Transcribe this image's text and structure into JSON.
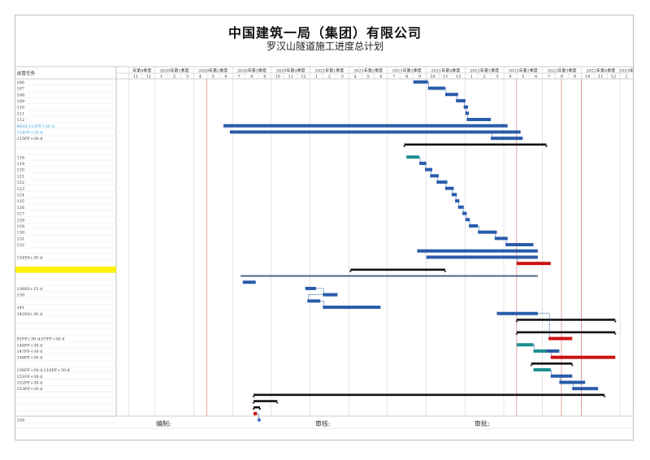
{
  "title": "中国建筑一局（集团）有限公司",
  "subtitle": "罗汉山隧道施工进度总计划",
  "task_column_header": "前置任务",
  "footer": {
    "compiled": "编制:",
    "reviewed": "审核:",
    "approved": "审批:"
  },
  "colors": {
    "bar": "#2a5caa",
    "summary": "#111111",
    "teal": "#1a8f8f",
    "critical": "#cc1111",
    "highlight": "#fff200",
    "link": "#2a5caa",
    "pred_highlight_text": "#3399dd"
  },
  "chart_data": {
    "type": "gantt",
    "timescale_start": "2019-10",
    "timescale_end": "2023-01",
    "quarters": [
      {
        "label": "年第4季度",
        "start": "2019-11",
        "months": [
          "11",
          "12"
        ]
      },
      {
        "label": "2020年第1季度",
        "start": "2020-01",
        "months": [
          "1",
          "2",
          "3"
        ]
      },
      {
        "label": "2020年第2季度",
        "start": "2020-04",
        "months": [
          "4",
          "5",
          "6"
        ]
      },
      {
        "label": "2020年第3季度",
        "start": "2020-07",
        "months": [
          "7",
          "8",
          "9"
        ]
      },
      {
        "label": "2020年第4季度",
        "start": "2020-10",
        "months": [
          "10",
          "11",
          "12"
        ]
      },
      {
        "label": "2021年第1季度",
        "start": "2021-01",
        "months": [
          "1",
          "2",
          "3"
        ]
      },
      {
        "label": "2021年第2季度",
        "start": "2021-04",
        "months": [
          "4",
          "5",
          "6"
        ]
      },
      {
        "label": "2021年第3季度",
        "start": "2021-07",
        "months": [
          "7",
          "8",
          "9"
        ]
      },
      {
        "label": "2021年第4季度",
        "start": "2021-10",
        "months": [
          "10",
          "11",
          "12"
        ]
      },
      {
        "label": "2022年第1季度",
        "start": "2022-01",
        "months": [
          "1",
          "2",
          "3"
        ]
      },
      {
        "label": "2022年第2季度",
        "start": "2022-04",
        "months": [
          "4",
          "5",
          "6"
        ]
      },
      {
        "label": "2022年第3季度",
        "start": "2022-07",
        "months": [
          "7",
          "8",
          "9"
        ]
      },
      {
        "label": "2022年第4季度",
        "start": "2022-10",
        "months": [
          "10",
          "11",
          "12"
        ]
      },
      {
        "label": "2023年",
        "start": "2023-01",
        "months": [
          "1"
        ]
      }
    ],
    "rows": [
      {
        "pred": "106",
        "bars": [
          {
            "start": "2021-09-01",
            "end": "2021-10-05",
            "kind": "bar"
          }
        ]
      },
      {
        "pred": "107",
        "bars": [
          {
            "start": "2021-10-05",
            "end": "2021-11-15",
            "kind": "bar"
          }
        ]
      },
      {
        "pred": "108",
        "bars": [
          {
            "start": "2021-11-15",
            "end": "2021-12-15",
            "kind": "bar"
          }
        ]
      },
      {
        "pred": "109",
        "bars": [
          {
            "start": "2021-12-10",
            "end": "2022-01-02",
            "kind": "bar"
          }
        ]
      },
      {
        "pred": "110",
        "bars": [
          {
            "start": "2021-12-28",
            "end": "2022-01-08",
            "kind": "bar"
          }
        ]
      },
      {
        "pred": "111",
        "bars": [
          {
            "start": "2022-01-02",
            "end": "2022-01-10",
            "kind": "bar"
          }
        ]
      },
      {
        "pred": "112",
        "bars": [
          {
            "start": "2022-01-05",
            "end": "2022-03-01",
            "kind": "bar"
          }
        ]
      },
      {
        "pred": "96SS,113FF+20 d",
        "pred_highlight": true,
        "bars": [
          {
            "start": "2020-06-10",
            "end": "2022-04-10",
            "kind": "bar"
          }
        ]
      },
      {
        "pred": "114FF+25 d",
        "pred_highlight": true,
        "bars": [
          {
            "start": "2020-06-25",
            "end": "2022-05-10",
            "kind": "bar"
          }
        ]
      },
      {
        "pred": "115FF+30 d",
        "bars": [
          {
            "start": "2022-03-01",
            "end": "2022-05-15",
            "kind": "bar"
          }
        ]
      },
      {
        "pred": "",
        "bars": [
          {
            "start": "2021-08-10",
            "end": "2022-07-10",
            "kind": "summary"
          }
        ]
      },
      {
        "pred": "",
        "bars": []
      },
      {
        "pred": "118",
        "bars": [
          {
            "start": "2021-08-15",
            "end": "2021-09-15",
            "kind": "teal"
          }
        ]
      },
      {
        "pred": "119",
        "bars": [
          {
            "start": "2021-09-15",
            "end": "2021-10-01",
            "kind": "bar"
          }
        ]
      },
      {
        "pred": "120",
        "bars": [
          {
            "start": "2021-09-28",
            "end": "2021-10-15",
            "kind": "bar"
          }
        ]
      },
      {
        "pred": "121",
        "bars": [
          {
            "start": "2021-10-10",
            "end": "2021-10-30",
            "kind": "bar"
          }
        ]
      },
      {
        "pred": "122",
        "bars": [
          {
            "start": "2021-10-25",
            "end": "2021-11-20",
            "kind": "bar"
          }
        ]
      },
      {
        "pred": "123",
        "bars": [
          {
            "start": "2021-11-15",
            "end": "2021-12-05",
            "kind": "bar"
          }
        ]
      },
      {
        "pred": "124",
        "bars": [
          {
            "start": "2021-11-30",
            "end": "2021-12-12",
            "kind": "bar"
          }
        ]
      },
      {
        "pred": "125",
        "bars": [
          {
            "start": "2021-12-08",
            "end": "2021-12-18",
            "kind": "bar"
          }
        ]
      },
      {
        "pred": "126",
        "bars": [
          {
            "start": "2021-12-15",
            "end": "2021-12-28",
            "kind": "bar"
          }
        ]
      },
      {
        "pred": "127",
        "bars": [
          {
            "start": "2021-12-25",
            "end": "2022-01-05",
            "kind": "bar"
          }
        ]
      },
      {
        "pred": "128",
        "bars": [
          {
            "start": "2022-01-02",
            "end": "2022-01-12",
            "kind": "bar"
          }
        ]
      },
      {
        "pred": "129",
        "bars": [
          {
            "start": "2022-01-10",
            "end": "2022-02-01",
            "kind": "bar"
          }
        ]
      },
      {
        "pred": "130",
        "bars": [
          {
            "start": "2022-02-01",
            "end": "2022-03-15",
            "kind": "bar"
          }
        ]
      },
      {
        "pred": "131",
        "bars": [
          {
            "start": "2022-03-10",
            "end": "2022-04-10",
            "kind": "bar"
          }
        ]
      },
      {
        "pred": "132",
        "bars": [
          {
            "start": "2022-04-05",
            "end": "2022-06-10",
            "kind": "bar"
          }
        ]
      },
      {
        "pred": "",
        "bars": [
          {
            "start": "2021-09-10",
            "end": "2022-06-20",
            "kind": "bar"
          }
        ]
      },
      {
        "pred": "134SS+20 d",
        "bars": [
          {
            "start": "2021-10-01",
            "end": "2022-06-20",
            "kind": "bar"
          }
        ]
      },
      {
        "pred": "",
        "bars": [
          {
            "start": "2022-05-01",
            "end": "2022-07-20",
            "kind": "critical"
          }
        ]
      },
      {
        "pred": "",
        "highlight": true,
        "bars": [
          {
            "start": "2021-04-05",
            "end": "2021-11-15",
            "kind": "summary"
          }
        ]
      },
      {
        "pred": "",
        "bars": [
          {
            "start": "2020-07-20",
            "end": "2022-06-20",
            "kind": "thin"
          }
        ]
      },
      {
        "pred": "",
        "bars": [
          {
            "start": "2020-07-25",
            "end": "2020-08-25",
            "kind": "bar"
          }
        ]
      },
      {
        "pred": "138SS+15 d",
        "bars": [
          {
            "start": "2020-12-20",
            "end": "2021-01-15",
            "kind": "bar"
          }
        ]
      },
      {
        "pred": "139",
        "bars": [
          {
            "start": "2021-02-01",
            "end": "2021-03-05",
            "kind": "bar"
          }
        ]
      },
      {
        "pred": "",
        "bars": [
          {
            "start": "2020-12-25",
            "end": "2021-01-25",
            "kind": "bar"
          }
        ]
      },
      {
        "pred": "141",
        "bars": [
          {
            "start": "2021-02-01",
            "end": "2021-06-15",
            "kind": "bar"
          }
        ]
      },
      {
        "pred": "142SS+30 d",
        "bars": [
          {
            "start": "2022-03-15",
            "end": "2022-06-20",
            "kind": "bar"
          }
        ]
      },
      {
        "pred": "",
        "bars": [
          {
            "start": "2022-05-01",
            "end": "2022-12-20",
            "kind": "summary"
          }
        ]
      },
      {
        "pred": "",
        "bars": []
      },
      {
        "pred": "",
        "bars": [
          {
            "start": "2022-05-01",
            "end": "2022-12-20",
            "kind": "summary"
          }
        ]
      },
      {
        "pred": "91FF+30 d,67FF+30 d",
        "bars": [
          {
            "start": "2022-07-15",
            "end": "2022-09-10",
            "kind": "critical"
          }
        ]
      },
      {
        "pred": "146FF+30 d",
        "bars": [
          {
            "start": "2022-05-01",
            "end": "2022-06-10",
            "kind": "teal"
          }
        ]
      },
      {
        "pred": "147FF+30 d",
        "bars": [
          {
            "start": "2022-06-10",
            "end": "2022-07-10",
            "kind": "teal"
          },
          {
            "start": "2022-07-10",
            "end": "2022-08-10",
            "kind": "bar"
          }
        ]
      },
      {
        "pred": "148FF+30 d",
        "bars": [
          {
            "start": "2022-07-20",
            "end": "2022-12-20",
            "kind": "critical"
          }
        ]
      },
      {
        "pred": "",
        "bars": [
          {
            "start": "2022-06-05",
            "end": "2022-09-10",
            "kind": "summary"
          }
        ]
      },
      {
        "pred": "136FF+30 d,116FF+30 d",
        "bars": [
          {
            "start": "2022-06-10",
            "end": "2022-07-20",
            "kind": "teal"
          }
        ]
      },
      {
        "pred": "151FF+30 d",
        "bars": [
          {
            "start": "2022-07-20",
            "end": "2022-09-10",
            "kind": "bar"
          }
        ]
      },
      {
        "pred": "152FF+30 d",
        "bars": [
          {
            "start": "2022-08-10",
            "end": "2022-10-10",
            "kind": "bar"
          }
        ]
      },
      {
        "pred": "153FF+30 d",
        "bars": [
          {
            "start": "2022-09-10",
            "end": "2022-11-10",
            "kind": "bar"
          }
        ]
      },
      {
        "pred": "",
        "bars": [
          {
            "start": "2020-08-20",
            "end": "2022-11-25",
            "kind": "summary"
          }
        ]
      },
      {
        "pred": "",
        "bars": [
          {
            "start": "2020-08-20",
            "end": "2020-10-15",
            "kind": "summary"
          }
        ]
      },
      {
        "pred": "",
        "bars": [
          {
            "start": "2020-08-20",
            "end": "2020-09-05",
            "kind": "summary"
          }
        ]
      },
      {
        "pred": "",
        "bars": [
          {
            "start": "2020-08-20",
            "end": "2020-08-28",
            "kind": "critical"
          }
        ]
      },
      {
        "pred": "158",
        "bars": [
          {
            "start": "2020-08-30",
            "end": "2020-09-06",
            "kind": "bar"
          }
        ]
      }
    ],
    "red_vertical_lines": [
      "2020-05-01",
      "2022-05-01",
      "2022-08-15",
      "2022-10-01"
    ]
  }
}
